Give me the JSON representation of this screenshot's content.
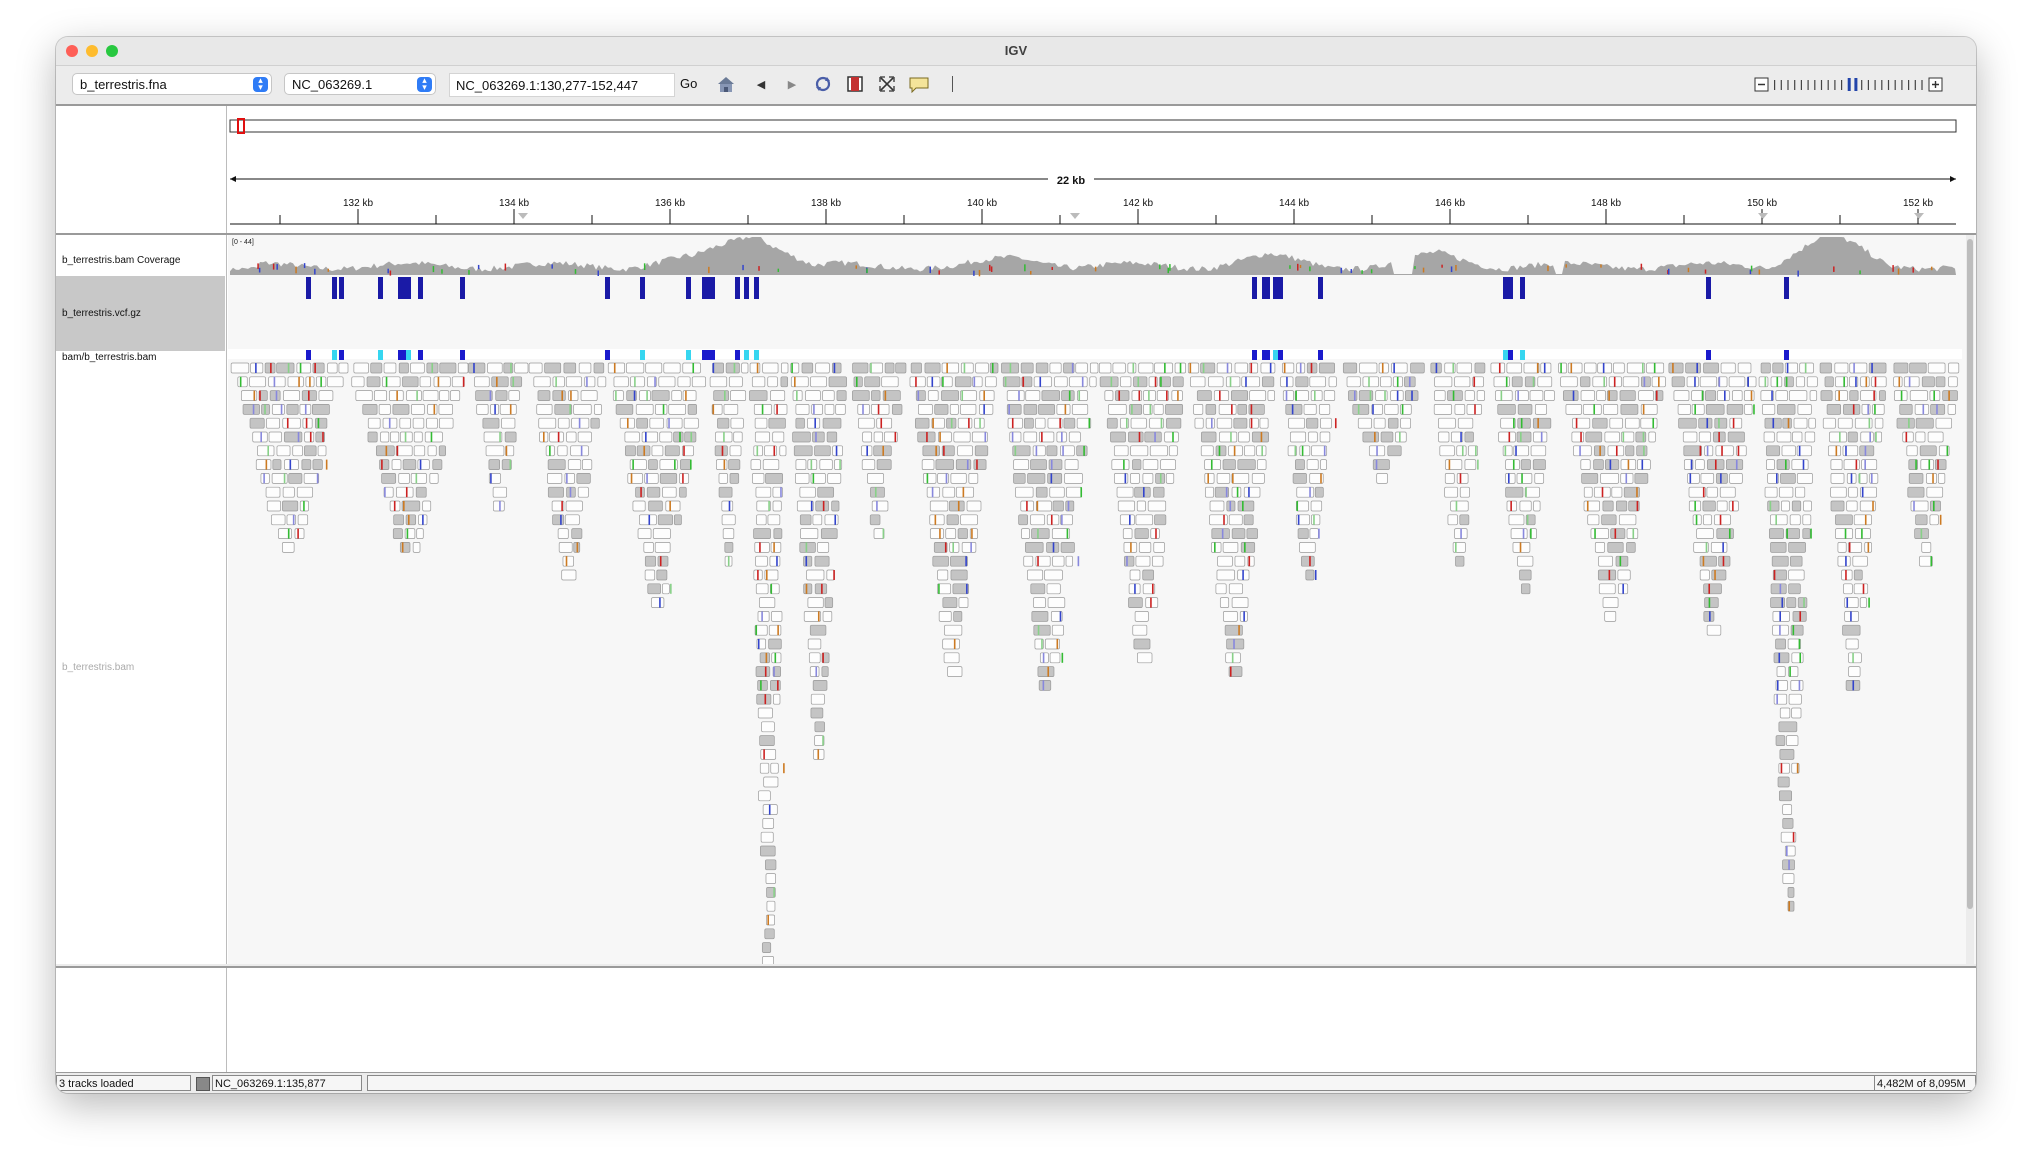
{
  "window": {
    "title": "IGV"
  },
  "toolbar": {
    "genome": "b_terrestris.fna",
    "chromosome": "NC_063269.1",
    "locus": "NC_063269.1:130,277-152,447",
    "go_label": "Go"
  },
  "ruler": {
    "span_label": "22 kb",
    "ticks": [
      "132 kb",
      "134 kb",
      "136 kb",
      "138 kb",
      "140 kb",
      "142 kb",
      "144 kb",
      "146 kb",
      "148 kb",
      "150 kb",
      "152 kb"
    ]
  },
  "tracks": [
    {
      "name": "b_terrestris.bam Coverage",
      "range": "[0 - 44]"
    },
    {
      "name": "b_terrestris.vcf.gz"
    },
    {
      "name": "bam/b_terrestris.bam"
    },
    {
      "name": "b_terrestris.bam"
    }
  ],
  "status": {
    "tracks_loaded": "3 tracks loaded",
    "position": "NC_063269.1:135,877",
    "memory": "4,482M of 8,095M"
  },
  "colors": {
    "variant": "#1a1aa6",
    "variant_light": "#36d6f0",
    "coverage": "#a6a6a6",
    "read": "#c4c4c4",
    "mismatch_a": "#33bb33",
    "mismatch_c": "#3344cc",
    "mismatch_g": "#cc7a22",
    "mismatch_t": "#cc2222"
  },
  "icons": [
    "home-icon",
    "back-icon",
    "forward-icon",
    "refresh-icon",
    "roi-icon",
    "resize-icon",
    "popup-text-icon"
  ]
}
